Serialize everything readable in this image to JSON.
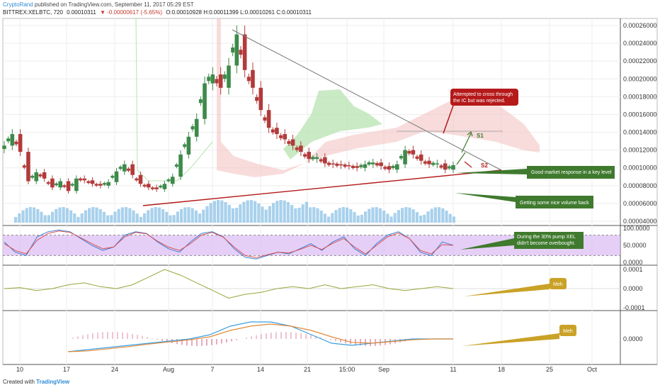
{
  "header": {
    "author": "CryptoRand",
    "published": "published on TradingView.com, September 11, 2017 05:29 EST",
    "symbol": "BITTREX:XELBTC, 720",
    "last": "0.00010311",
    "change": "▼ -0.00000617 (-5.65%)",
    "ohlc": "O:0.00010928 H:0.00011399 L:0.00010261 C:0.00010311"
  },
  "footer": {
    "created_with": "Created with",
    "brand": "TradingView"
  },
  "colors": {
    "up": "#3d8a4a",
    "down": "#b33a3a",
    "annotation_red": "#b5191a",
    "annotation_green": "#3f7a2e",
    "annotation_gold": "#c9a227",
    "rsi_band": "#d9b6f2",
    "cloud_green": "#b7e3b0",
    "cloud_red": "#f4c4c4",
    "volume": "#8cc2e6"
  },
  "chart_data": [
    {
      "type": "candlestick",
      "pane": "price",
      "ylim": [
        4e-05,
        0.00026
      ],
      "y_ticks": [
        "0.00026000",
        "0.00024000",
        "0.00022000",
        "0.00020000",
        "0.00018000",
        "0.00016000",
        "0.00014000",
        "0.00012000",
        "0.00010000",
        "0.00008000",
        "0.00006000",
        "0.00004000"
      ],
      "x_ticks": [
        "10",
        "17",
        "24",
        "Aug",
        "7",
        "14",
        "21",
        "15:00",
        "Sep",
        "11",
        "18",
        "25",
        "Oct"
      ],
      "close_path": [
        0.000125,
        0.000138,
        0.000118,
        8.5e-05,
        9.5e-05,
        8.8e-05,
        7.8e-05,
        8.5e-05,
        7.4e-05,
        8.8e-05,
        8.6e-05,
        8.2e-05,
        8e-05,
        8.4e-05,
        9.6e-05,
        0.000104,
        9.2e-05,
        8.2e-05,
        7.8e-05,
        7.6e-05,
        8.2e-05,
        9e-05,
        0.000115,
        0.000135,
        0.000155,
        0.000195,
        0.000205,
        0.00019,
        0.000215,
        0.00025,
        0.00021,
        0.00019,
        0.000165,
        0.000145,
        0.000138,
        0.000132,
        0.000125,
        0.000118,
        0.00011,
        0.000112,
        0.000105,
        0.000104,
        0.000103,
        0.000102,
        0.0001,
        0.000104,
        0.000106,
        0.000102,
        9.8e-05,
        0.000104,
        0.00012,
        0.000115,
        0.000108,
        0.000104,
        0.000105,
        9.8e-05,
        0.000103
      ],
      "annotations": {
        "resistance_note": "Attempted to cross through the IC but was rejected.",
        "support_note": "Good market response in a key level",
        "s1": "S1",
        "s2": "S2",
        "volume_note": "Getting some nice volume back"
      }
    },
    {
      "type": "line",
      "pane": "rsi",
      "ylim": [
        0,
        100
      ],
      "y_ticks": [
        "100.0000",
        "50.0000",
        "0.0000"
      ],
      "series": [
        {
          "values": [
            60,
            30,
            20,
            75,
            90,
            95,
            90,
            70,
            50,
            35,
            45,
            80,
            90,
            85,
            60,
            40,
            30,
            60,
            85,
            90,
            75,
            40,
            15,
            10,
            20,
            30,
            25,
            40,
            55,
            35,
            60,
            75,
            40,
            20,
            55,
            80,
            90,
            70,
            30,
            20,
            60,
            50
          ]
        },
        {
          "values": [
            55,
            35,
            25,
            65,
            85,
            92,
            88,
            72,
            55,
            40,
            45,
            75,
            88,
            84,
            62,
            45,
            35,
            55,
            80,
            88,
            74,
            45,
            20,
            14,
            22,
            30,
            28,
            38,
            50,
            38,
            56,
            70,
            45,
            25,
            50,
            75,
            86,
            70,
            35,
            25,
            52,
            50
          ]
        }
      ],
      "note": "During the 30% pump XEL didn't become overbought."
    },
    {
      "type": "line",
      "pane": "oscillator",
      "ylim": [
        -0.0001,
        0.0001
      ],
      "y_ticks": [
        "0.0001",
        "0.0000",
        "-0.0001"
      ],
      "series": [
        {
          "values": [
            0.0,
            5e-06,
            -1e-05,
            0.0,
            2e-05,
            3e-05,
            1e-05,
            0.0,
            2e-05,
            6e-05,
            0.0001,
            7e-05,
            3e-05,
            -1e-05,
            -5e-05,
            -3e-05,
            -2e-05,
            0.0,
            1e-05,
            0.0,
            2e-05,
            0.0,
            1e-05,
            2e-05,
            0.0,
            -1e-05,
            0.0,
            1e-05,
            0.0
          ]
        }
      ],
      "note": "Meh"
    },
    {
      "type": "line",
      "pane": "macd",
      "y_ticks": [
        "0.0000"
      ],
      "series": [
        {
          "values": [
            -3e-05,
            -2.5e-05,
            -2e-05,
            -1.5e-05,
            -1e-05,
            -5e-06,
            0.0,
            1e-05,
            3e-05,
            4e-05,
            4e-05,
            3e-05,
            1e-05,
            -1e-05,
            -1.5e-05,
            -1e-05,
            -5e-06,
            0.0,
            0.0,
            0.0
          ]
        },
        {
          "values": [
            -3e-05,
            -2.8e-05,
            -2.3e-05,
            -1.8e-05,
            -1.2e-05,
            -7e-06,
            -2e-06,
            5e-06,
            2e-05,
            3e-05,
            3.5e-05,
            3e-05,
            2e-05,
            5e-06,
            -8e-06,
            -1e-05,
            -6e-06,
            -2e-06,
            0.0,
            0.0
          ]
        }
      ],
      "note": "Meh"
    }
  ]
}
